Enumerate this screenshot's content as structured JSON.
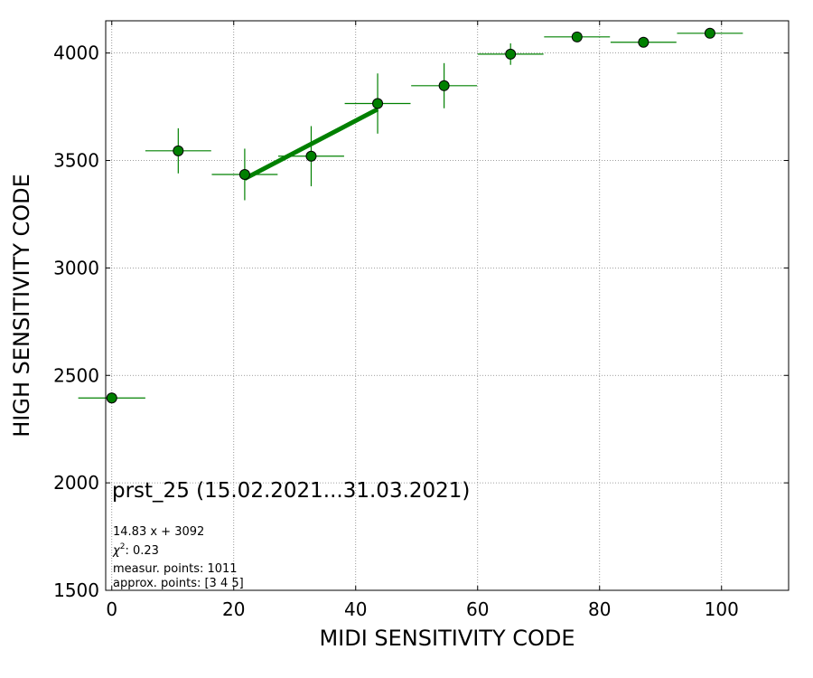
{
  "chart_data": {
    "type": "scatter",
    "xlabel": "MIDI SENSITIVITY CODE",
    "ylabel": "HIGH SENSITIVITY CODE",
    "xlim": [
      -1,
      111
    ],
    "ylim": [
      1500,
      4150
    ],
    "xticks": [
      0,
      20,
      40,
      60,
      80,
      100
    ],
    "yticks": [
      1500,
      2000,
      2500,
      3000,
      3500,
      4000
    ],
    "grid": true,
    "points": [
      {
        "x": 0.0,
        "y": 2395,
        "xerr": 5.5,
        "yerr": 0
      },
      {
        "x": 10.9,
        "y": 3545,
        "xerr": 5.4,
        "yerr": 105
      },
      {
        "x": 21.8,
        "y": 3435,
        "xerr": 5.4,
        "yerr": 120
      },
      {
        "x": 32.7,
        "y": 3520,
        "xerr": 5.4,
        "yerr": 140
      },
      {
        "x": 43.6,
        "y": 3765,
        "xerr": 5.4,
        "yerr": 140
      },
      {
        "x": 54.5,
        "y": 3848,
        "xerr": 5.4,
        "yerr": 105
      },
      {
        "x": 65.4,
        "y": 3995,
        "xerr": 5.4,
        "yerr": 50
      },
      {
        "x": 76.3,
        "y": 4075,
        "xerr": 5.4,
        "yerr": 0
      },
      {
        "x": 87.2,
        "y": 4050,
        "xerr": 5.4,
        "yerr": 0
      },
      {
        "x": 98.1,
        "y": 4092,
        "xerr": 5.4,
        "yerr": 0
      }
    ],
    "fit": {
      "slope": 14.83,
      "intercept": 3092,
      "x_range": [
        21.8,
        43.6
      ]
    },
    "colors": {
      "series": "#008000",
      "marker_edge": "#000000",
      "grid": "#808080"
    },
    "annotations": {
      "title": "prst_25 (15.02.2021...31.03.2021)",
      "equation": "14.83 x + 3092",
      "chi2_label": "χ",
      "chi2_sup": "2",
      "chi2_value": ": 0.23",
      "measur": "measur. points: 1011",
      "approx": "approx. points: [3 4 5]"
    }
  }
}
